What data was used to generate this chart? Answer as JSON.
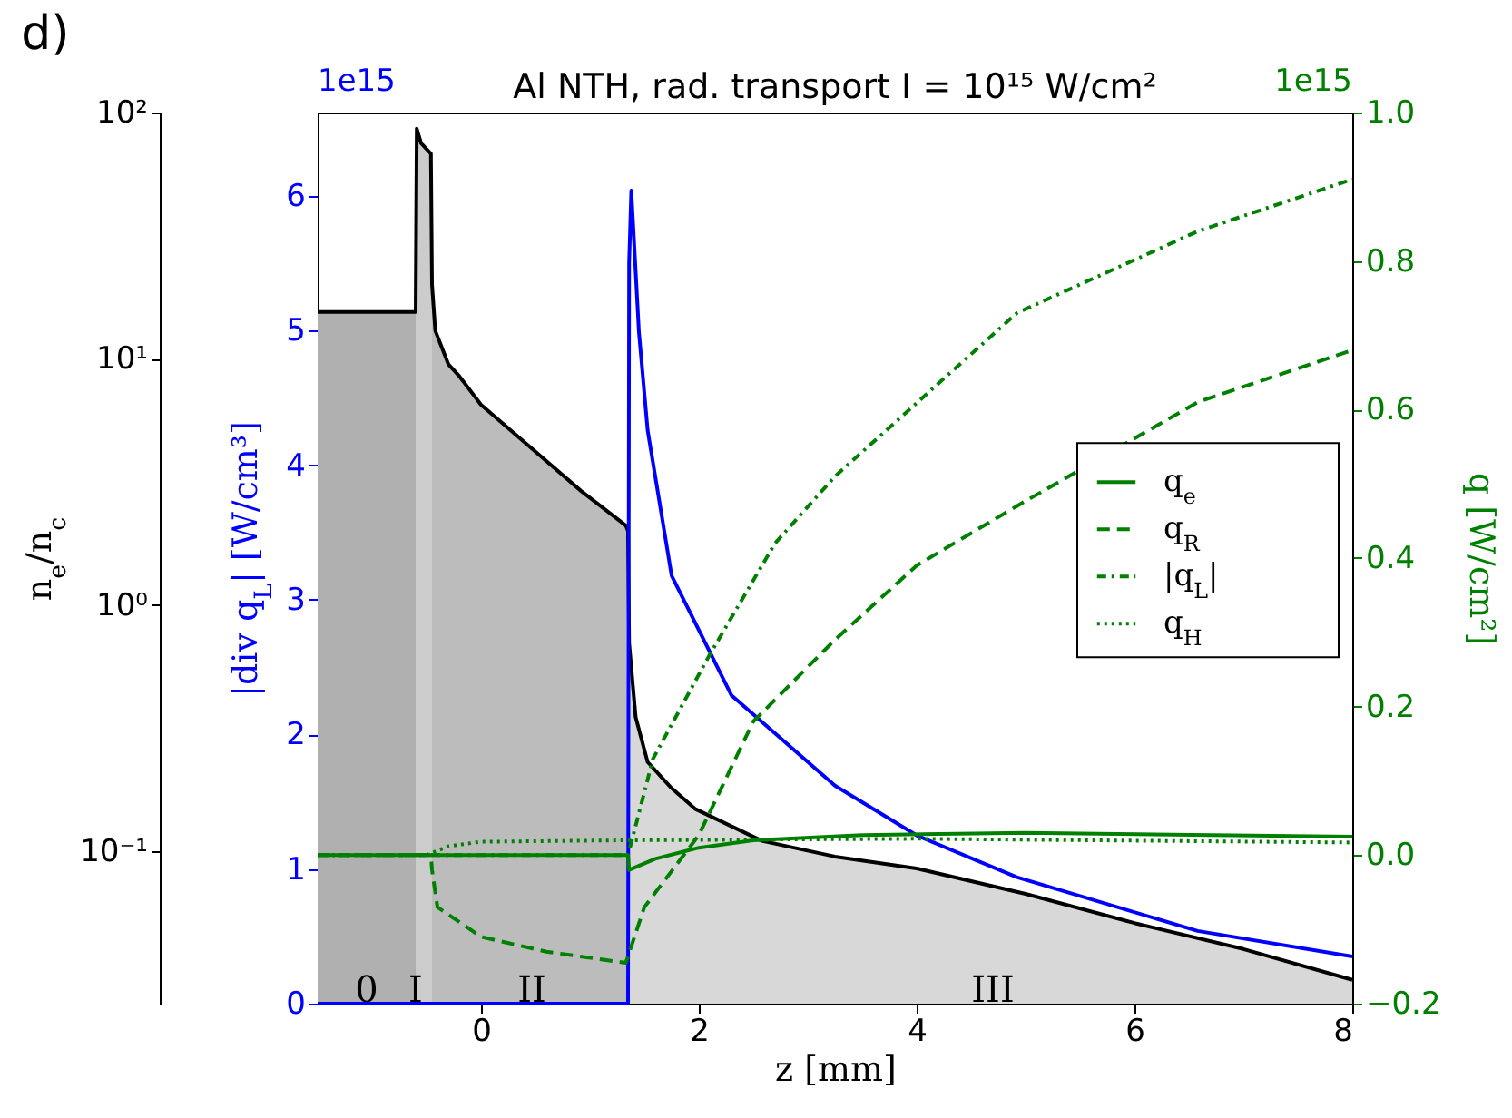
{
  "chart_data": {
    "type": "line",
    "title": "Al NTH, rad. transport I = 10¹⁵ W/cm²",
    "xlabel": "z [mm]",
    "ylabel": "n$_{e}$/n$_{c}$",
    "y2label": "|div q$_{L}$| [W/cm³]",
    "y3label": "q [W/cm²]",
    "xlim": [
      -1.5,
      8
    ],
    "xticks": [
      0,
      2,
      4,
      6,
      8
    ],
    "log": "y",
    "ylim": [
      0.024,
      100
    ],
    "yticks": [
      {
        "value": 0.1,
        "label": "10⁻¹"
      },
      {
        "value": 1,
        "label": "10⁰"
      },
      {
        "value": 10,
        "label": "10¹"
      },
      {
        "value": 100,
        "label": "10²"
      }
    ],
    "y2lim": [
      0,
      6.62
    ],
    "y2ticks": [
      0,
      1,
      2,
      3,
      4,
      5,
      6
    ],
    "y3lim": [
      -0.2,
      1.0
    ],
    "y3ticks": [
      {
        "value": -0.2,
        "label": "−0.2"
      },
      {
        "value": 0,
        "label": "0.0"
      },
      {
        "value": 0.2,
        "label": "0.2"
      },
      {
        "value": 0.4,
        "label": "0.4"
      },
      {
        "value": 0.6,
        "label": "0.6"
      },
      {
        "value": 0.8,
        "label": "0.8"
      },
      {
        "value": 1.0,
        "label": "1.0"
      }
    ],
    "grid": false,
    "legend": "center right",
    "annotations": [
      "d)",
      "1e15",
      "1e15",
      "0",
      "I",
      "II",
      "III"
    ],
    "series": [
      {
        "type": "area",
        "color": "#b0b0b0",
        "x": [
          -1.5,
          -0.6
        ],
        "values": [
          15.5,
          15.5
        ]
      },
      {
        "type": "area",
        "color": "#cccccc",
        "x": [
          -0.6,
          -0.59,
          -0.55,
          -0.46,
          -0.45
        ],
        "values": [
          15.5,
          86,
          75,
          68,
          20
        ]
      },
      {
        "type": "area",
        "color": "#bcbcbc",
        "x": [
          -0.45,
          -0.42,
          -0.3,
          -0.2,
          0,
          0.37,
          0.92,
          1.33,
          1.35
        ],
        "values": [
          20,
          13,
          9.5,
          8.5,
          6.5,
          4.7,
          2.9,
          2.1,
          2.0
        ]
      },
      {
        "type": "area",
        "color": "#d8d8d8",
        "x": [
          1.35,
          1.36,
          1.42,
          1.53,
          1.75,
          1.97,
          2.58,
          3.25,
          4,
          5,
          6,
          7,
          8
        ],
        "values": [
          2.0,
          0.7,
          0.35,
          0.23,
          0.18,
          0.148,
          0.11,
          0.095,
          0.085,
          0.067,
          0.051,
          0.04,
          0.03
        ]
      },
      {
        "type": "line",
        "color": "#000000",
        "x": [
          -1.5,
          -0.6,
          -0.59,
          -0.55,
          -0.46,
          -0.45,
          -0.42,
          -0.3,
          -0.2,
          0,
          0.37,
          0.92,
          1.33,
          1.35,
          1.36,
          1.42,
          1.53,
          1.75,
          1.97,
          2.58,
          3.25,
          4,
          5,
          6,
          7,
          8
        ],
        "values": [
          15.5,
          15.5,
          86,
          75,
          68,
          20,
          13,
          9.5,
          8.5,
          6.5,
          4.7,
          2.9,
          2.1,
          2.0,
          0.7,
          0.35,
          0.23,
          0.18,
          0.148,
          0.11,
          0.095,
          0.085,
          0.067,
          0.051,
          0.04,
          0.03
        ]
      },
      {
        "type": "line",
        "axis": "y2",
        "color": "#0000ff",
        "x": [
          -1.5,
          1.35,
          1.36,
          1.38,
          1.45,
          1.53,
          1.75,
          2.3,
          3.25,
          4,
          4.92,
          6.58,
          8
        ],
        "values": [
          0,
          0,
          5.5,
          6.04,
          4.99,
          4.26,
          3.18,
          2.29,
          1.62,
          1.25,
          0.94,
          0.54,
          0.35
        ]
      },
      {
        "type": "line",
        "axis": "y3",
        "name": "q$_{e}$",
        "color": "#008000",
        "line_style": "solid",
        "x": [
          -1.5,
          1.35,
          1.36,
          1.6,
          2.0,
          2.5,
          3.5,
          5,
          8
        ],
        "values": [
          0,
          0,
          -0.02,
          -0.005,
          0.01,
          0.02,
          0.027,
          0.03,
          0.025
        ]
      },
      {
        "type": "line",
        "axis": "y3",
        "name": "q$_{R}$",
        "color": "#008000",
        "line_style": "dashed",
        "x": [
          -1.5,
          -0.46,
          -0.45,
          -0.4,
          0,
          0.6,
          1.33,
          1.5,
          2.0,
          2.5,
          3.25,
          4,
          4.92,
          6.58,
          8
        ],
        "values": [
          0,
          0,
          -0.02,
          -0.07,
          -0.11,
          -0.13,
          -0.145,
          -0.07,
          0.027,
          0.18,
          0.29,
          0.39,
          0.47,
          0.61,
          0.68
        ]
      },
      {
        "type": "line",
        "axis": "y3",
        "name": "|q$_{L}$|",
        "color": "#008000",
        "line_style": "dashdot",
        "x": [
          -1.5,
          1.35,
          1.58,
          2.1,
          2.7,
          3.25,
          4.92,
          6.58,
          8
        ],
        "values": [
          0,
          0,
          0.13,
          0.27,
          0.42,
          0.51,
          0.73,
          0.84,
          0.91
        ]
      },
      {
        "type": "line",
        "axis": "y3",
        "name": "q$_{H}$",
        "color": "#008000",
        "line_style": "dotted",
        "x": [
          -1.5,
          -0.5,
          -0.3,
          0,
          1.35,
          4,
          8
        ],
        "values": [
          0,
          0,
          0.012,
          0.018,
          0.02,
          0.022,
          0.017
        ]
      }
    ]
  }
}
